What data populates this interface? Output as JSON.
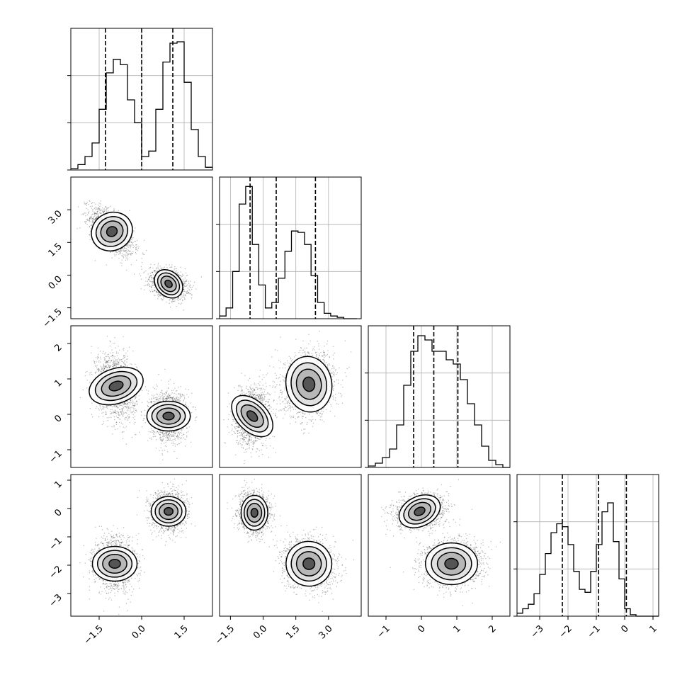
{
  "chart_data": {
    "type": "corner",
    "title": "",
    "n_params": 4,
    "variables": [
      {
        "label": "",
        "range": [
          -2.5,
          2.5
        ],
        "ticks": [
          -1.5,
          0.0,
          1.5
        ],
        "tick_labels": [
          "−1.5",
          "0.0",
          "1.5"
        ]
      },
      {
        "label": "",
        "range": [
          -2.0,
          4.5
        ],
        "ticks": [
          -1.5,
          0.0,
          1.5,
          3.0
        ],
        "tick_labels": [
          "−1.5",
          "0.0",
          "1.5",
          "3.0"
        ]
      },
      {
        "label": "",
        "range": [
          -1.5,
          2.5
        ],
        "ticks": [
          -1,
          0,
          1,
          2
        ],
        "tick_labels": [
          "−1",
          "0",
          "1",
          "2"
        ]
      },
      {
        "label": "",
        "range": [
          -3.8,
          1.2
        ],
        "ticks": [
          -3,
          -2,
          -1,
          0,
          1
        ],
        "tick_labels": [
          "−3",
          "−2",
          "−1",
          "0",
          "1"
        ]
      }
    ],
    "histograms": [
      {
        "bin_start": -2.5,
        "bin_width": 0.25,
        "counts": [
          0.01,
          0.04,
          0.1,
          0.2,
          0.45,
          0.72,
          0.82,
          0.78,
          0.52,
          0.35,
          0.1,
          0.14,
          0.45,
          0.8,
          0.94,
          0.95,
          0.65,
          0.3,
          0.1,
          0.02
        ],
        "quantiles": [
          -1.28,
          0.0,
          1.1
        ],
        "ymax": 1.05
      },
      {
        "bin_start": -2.0,
        "bin_width": 0.3,
        "counts": [
          0.02,
          0.08,
          0.35,
          0.85,
          0.98,
          0.55,
          0.25,
          0.08,
          0.12,
          0.3,
          0.5,
          0.65,
          0.64,
          0.55,
          0.32,
          0.12,
          0.04,
          0.02,
          0.01,
          0.0,
          0.0
        ],
        "quantiles": [
          -0.6,
          0.6,
          2.4
        ],
        "ymax": 1.05
      },
      {
        "bin_start": -1.5,
        "bin_width": 0.2,
        "counts": [
          0.01,
          0.03,
          0.07,
          0.13,
          0.3,
          0.58,
          0.82,
          0.93,
          0.9,
          0.82,
          0.82,
          0.76,
          0.73,
          0.62,
          0.45,
          0.3,
          0.15,
          0.05,
          0.02,
          0.0
        ],
        "quantiles": [
          -0.22,
          0.35,
          1.03
        ],
        "ymax": 1.0
      },
      {
        "bin_start": -3.8,
        "bin_width": 0.2,
        "counts": [
          0.02,
          0.05,
          0.08,
          0.15,
          0.28,
          0.42,
          0.56,
          0.62,
          0.6,
          0.48,
          0.3,
          0.18,
          0.16,
          0.3,
          0.48,
          0.7,
          0.76,
          0.5,
          0.25,
          0.05,
          0.01,
          0.0,
          0.0,
          0.0,
          0.0
        ],
        "quantiles": [
          -2.2,
          -0.92,
          0.06
        ],
        "ymax": 0.95
      }
    ],
    "pair_panels": [
      {
        "x": 0,
        "y": 1,
        "clusters": [
          {
            "cx": -1.05,
            "cy": 2.0,
            "sx": 0.38,
            "sy": 0.55,
            "rho": -0.6
          },
          {
            "cx": 0.95,
            "cy": -0.4,
            "sx": 0.32,
            "sy": 0.32,
            "rho": -0.3
          }
        ]
      },
      {
        "x": 0,
        "y": 2,
        "clusters": [
          {
            "cx": -0.9,
            "cy": 0.8,
            "sx": 0.35,
            "sy": 0.45,
            "rho": -0.2
          },
          {
            "cx": 0.95,
            "cy": -0.05,
            "sx": 0.3,
            "sy": 0.35,
            "rho": 0.0
          }
        ]
      },
      {
        "x": 1,
        "y": 2,
        "clusters": [
          {
            "cx": -0.5,
            "cy": -0.05,
            "sx": 0.4,
            "sy": 0.4,
            "rho": 0.1
          },
          {
            "cx": 2.1,
            "cy": 0.85,
            "sx": 0.6,
            "sy": 0.45,
            "rho": 0.1
          }
        ]
      },
      {
        "x": 0,
        "y": 3,
        "clusters": [
          {
            "cx": -0.95,
            "cy": -1.95,
            "sx": 0.35,
            "sy": 0.45,
            "rho": 0.0
          },
          {
            "cx": 0.95,
            "cy": -0.1,
            "sx": 0.3,
            "sy": 0.35,
            "rho": 0.0
          }
        ]
      },
      {
        "x": 1,
        "y": 3,
        "clusters": [
          {
            "cx": -0.4,
            "cy": -0.15,
            "sx": 0.35,
            "sy": 0.35,
            "rho": 0.0
          },
          {
            "cx": 2.1,
            "cy": -1.95,
            "sx": 0.6,
            "sy": 0.45,
            "rho": -0.15
          }
        ]
      },
      {
        "x": 2,
        "y": 3,
        "clusters": [
          {
            "cx": -0.05,
            "cy": -0.1,
            "sx": 0.35,
            "sy": 0.3,
            "rho": 0.2
          },
          {
            "cx": 0.85,
            "cy": -1.95,
            "sx": 0.42,
            "sy": 0.42,
            "rho": 0.0
          }
        ]
      }
    ],
    "grid": true,
    "legend": "none"
  }
}
